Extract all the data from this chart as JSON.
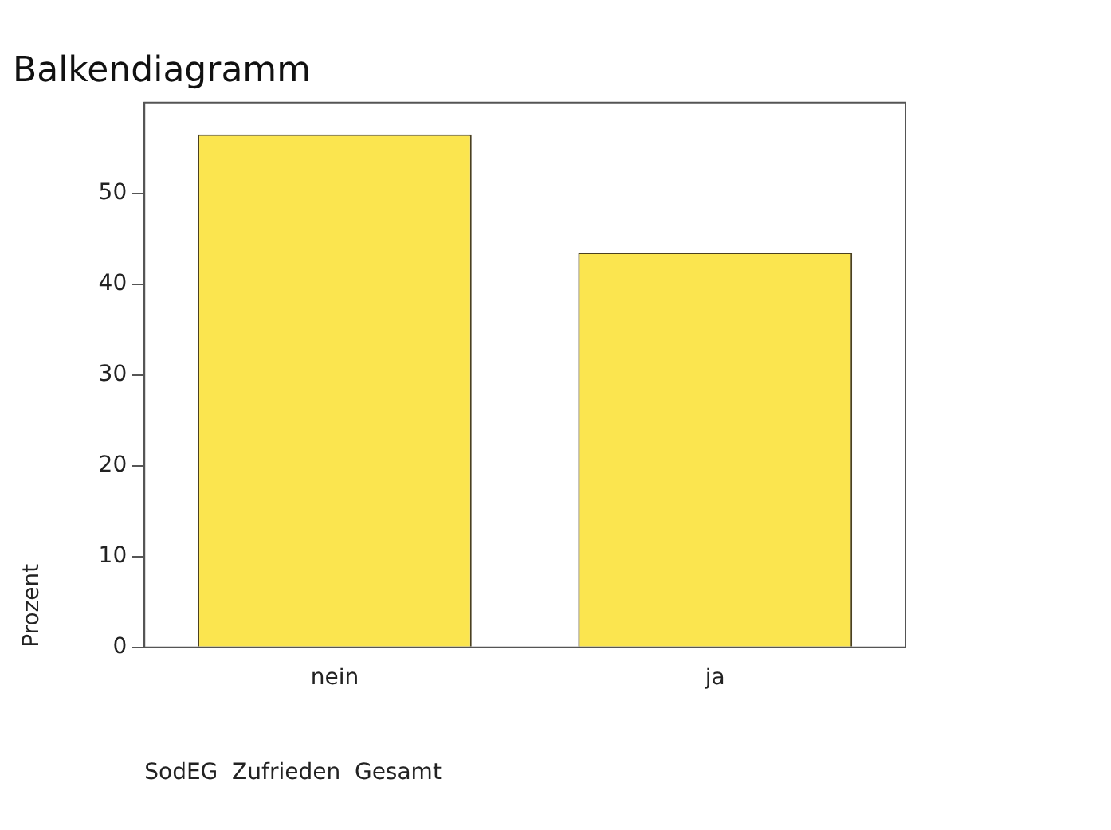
{
  "chart_data": {
    "type": "bar",
    "title": "Balkendiagramm",
    "xlabel": "SodEG  Zufrieden  Gesamt",
    "ylabel": "Prozent",
    "categories": [
      "nein",
      "ja"
    ],
    "values": [
      56.5,
      43.5
    ],
    "color": "#fbe54f",
    "ylim": [
      0,
      60
    ],
    "yticks": [
      0,
      10,
      20,
      30,
      40,
      50
    ],
    "grid": false,
    "legend": false
  }
}
